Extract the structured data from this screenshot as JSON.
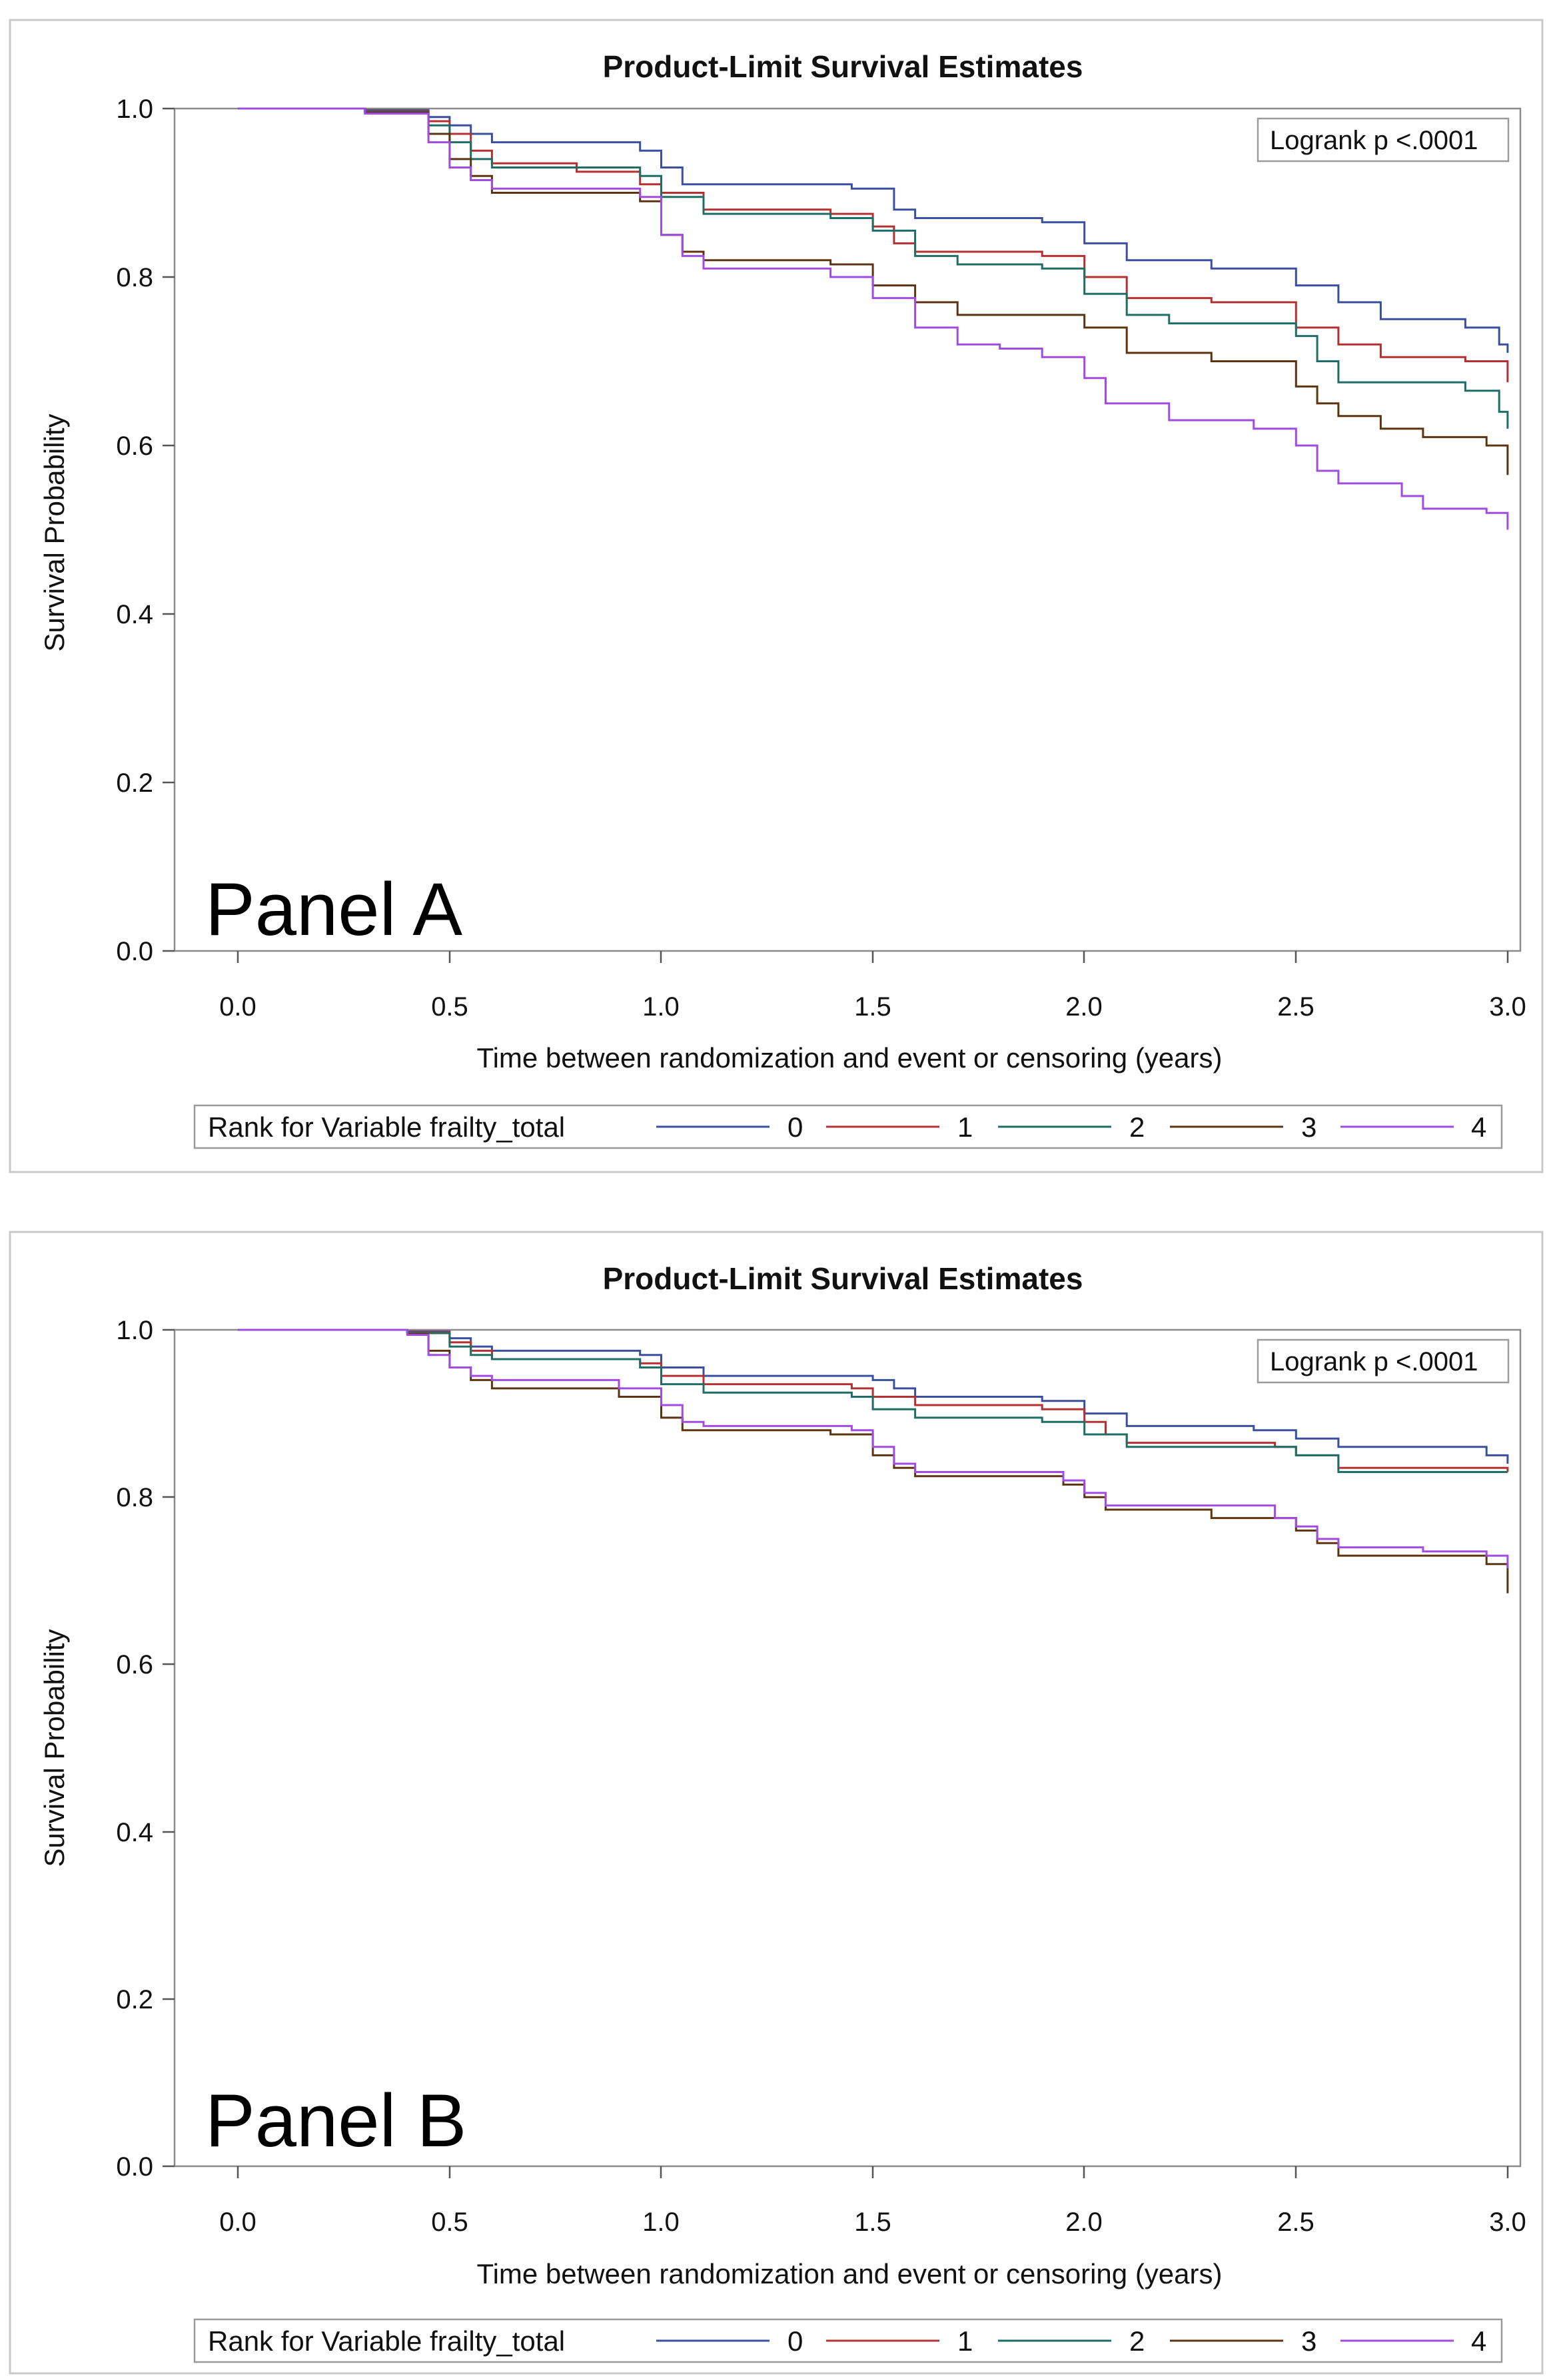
{
  "colors": {
    "series": [
      "#3a4fa0",
      "#b53030",
      "#1e6e66",
      "#5c3410",
      "#a14be0"
    ]
  },
  "chart_data": [
    {
      "type": "line",
      "panel_label": "Panel A",
      "title": "Product-Limit Survival Estimates",
      "xlabel": "Time between randomization and event or censoring (years)",
      "ylabel": "Survival Probability",
      "xlim": [
        -0.15,
        3.03
      ],
      "ylim": [
        0,
        1.0
      ],
      "xticks": [
        "0.0",
        "0.5",
        "1.0",
        "1.5",
        "2.0",
        "2.5",
        "3.0"
      ],
      "yticks": [
        "0.0",
        "0.2",
        "0.4",
        "0.6",
        "0.8",
        "1.0"
      ],
      "annotation": "Logrank p <.0001",
      "legend_title": "Rank for Variable frailty_total",
      "series": [
        {
          "name": "0",
          "points": [
            [
              0,
              1.0
            ],
            [
              0.3,
              0.998
            ],
            [
              0.45,
              0.99
            ],
            [
              0.5,
              0.98
            ],
            [
              0.55,
              0.97
            ],
            [
              0.6,
              0.96
            ],
            [
              0.95,
              0.95
            ],
            [
              1.0,
              0.93
            ],
            [
              1.05,
              0.91
            ],
            [
              1.45,
              0.905
            ],
            [
              1.55,
              0.88
            ],
            [
              1.6,
              0.87
            ],
            [
              1.9,
              0.865
            ],
            [
              2.0,
              0.84
            ],
            [
              2.1,
              0.82
            ],
            [
              2.3,
              0.81
            ],
            [
              2.5,
              0.79
            ],
            [
              2.6,
              0.77
            ],
            [
              2.7,
              0.75
            ],
            [
              2.9,
              0.74
            ],
            [
              2.98,
              0.72
            ],
            [
              3.0,
              0.71
            ]
          ]
        },
        {
          "name": "1",
          "points": [
            [
              0,
              1.0
            ],
            [
              0.3,
              0.997
            ],
            [
              0.45,
              0.985
            ],
            [
              0.5,
              0.97
            ],
            [
              0.55,
              0.95
            ],
            [
              0.6,
              0.935
            ],
            [
              0.8,
              0.925
            ],
            [
              0.95,
              0.91
            ],
            [
              1.0,
              0.9
            ],
            [
              1.1,
              0.88
            ],
            [
              1.4,
              0.875
            ],
            [
              1.5,
              0.86
            ],
            [
              1.55,
              0.84
            ],
            [
              1.6,
              0.83
            ],
            [
              1.9,
              0.825
            ],
            [
              2.0,
              0.8
            ],
            [
              2.1,
              0.775
            ],
            [
              2.3,
              0.77
            ],
            [
              2.5,
              0.74
            ],
            [
              2.6,
              0.72
            ],
            [
              2.7,
              0.705
            ],
            [
              2.9,
              0.7
            ],
            [
              3.0,
              0.675
            ]
          ]
        },
        {
          "name": "2",
          "points": [
            [
              0,
              1.0
            ],
            [
              0.3,
              0.996
            ],
            [
              0.45,
              0.98
            ],
            [
              0.5,
              0.96
            ],
            [
              0.55,
              0.94
            ],
            [
              0.6,
              0.93
            ],
            [
              0.95,
              0.92
            ],
            [
              1.0,
              0.895
            ],
            [
              1.1,
              0.875
            ],
            [
              1.4,
              0.87
            ],
            [
              1.5,
              0.855
            ],
            [
              1.6,
              0.825
            ],
            [
              1.7,
              0.815
            ],
            [
              1.9,
              0.81
            ],
            [
              2.0,
              0.78
            ],
            [
              2.1,
              0.755
            ],
            [
              2.2,
              0.745
            ],
            [
              2.5,
              0.73
            ],
            [
              2.55,
              0.7
            ],
            [
              2.6,
              0.675
            ],
            [
              2.9,
              0.665
            ],
            [
              2.98,
              0.64
            ],
            [
              3.0,
              0.62
            ]
          ]
        },
        {
          "name": "3",
          "points": [
            [
              0,
              1.0
            ],
            [
              0.3,
              0.995
            ],
            [
              0.45,
              0.97
            ],
            [
              0.5,
              0.94
            ],
            [
              0.55,
              0.92
            ],
            [
              0.6,
              0.9
            ],
            [
              0.95,
              0.89
            ],
            [
              1.0,
              0.85
            ],
            [
              1.05,
              0.83
            ],
            [
              1.1,
              0.82
            ],
            [
              1.4,
              0.815
            ],
            [
              1.5,
              0.79
            ],
            [
              1.6,
              0.77
            ],
            [
              1.7,
              0.755
            ],
            [
              2.0,
              0.74
            ],
            [
              2.1,
              0.71
            ],
            [
              2.3,
              0.7
            ],
            [
              2.5,
              0.67
            ],
            [
              2.55,
              0.65
            ],
            [
              2.6,
              0.635
            ],
            [
              2.7,
              0.62
            ],
            [
              2.8,
              0.61
            ],
            [
              2.95,
              0.6
            ],
            [
              3.0,
              0.565
            ]
          ]
        },
        {
          "name": "4",
          "points": [
            [
              0,
              1.0
            ],
            [
              0.3,
              0.994
            ],
            [
              0.45,
              0.96
            ],
            [
              0.5,
              0.93
            ],
            [
              0.55,
              0.915
            ],
            [
              0.6,
              0.905
            ],
            [
              0.95,
              0.895
            ],
            [
              1.0,
              0.85
            ],
            [
              1.05,
              0.825
            ],
            [
              1.1,
              0.81
            ],
            [
              1.4,
              0.8
            ],
            [
              1.5,
              0.775
            ],
            [
              1.6,
              0.74
            ],
            [
              1.7,
              0.72
            ],
            [
              1.8,
              0.715
            ],
            [
              1.9,
              0.705
            ],
            [
              2.0,
              0.68
            ],
            [
              2.05,
              0.65
            ],
            [
              2.2,
              0.63
            ],
            [
              2.4,
              0.62
            ],
            [
              2.5,
              0.6
            ],
            [
              2.55,
              0.57
            ],
            [
              2.6,
              0.555
            ],
            [
              2.75,
              0.54
            ],
            [
              2.8,
              0.525
            ],
            [
              2.95,
              0.52
            ],
            [
              3.0,
              0.5
            ]
          ]
        }
      ]
    },
    {
      "type": "line",
      "panel_label": "Panel B",
      "title": "Product-Limit Survival Estimates",
      "xlabel": "Time between randomization and event or censoring (years)",
      "ylabel": "Survival Probability",
      "xlim": [
        -0.15,
        3.03
      ],
      "ylim": [
        0,
        1.0
      ],
      "xticks": [
        "0.0",
        "0.5",
        "1.0",
        "1.5",
        "2.0",
        "2.5",
        "3.0"
      ],
      "yticks": [
        "0.0",
        "0.2",
        "0.4",
        "0.6",
        "0.8",
        "1.0"
      ],
      "annotation": "Logrank p <.0001",
      "legend_title": "Rank for Variable frailty_total",
      "series": [
        {
          "name": "0",
          "points": [
            [
              0,
              1.0
            ],
            [
              0.4,
              0.998
            ],
            [
              0.5,
              0.99
            ],
            [
              0.55,
              0.98
            ],
            [
              0.6,
              0.975
            ],
            [
              0.95,
              0.97
            ],
            [
              1.0,
              0.955
            ],
            [
              1.1,
              0.945
            ],
            [
              1.5,
              0.94
            ],
            [
              1.55,
              0.93
            ],
            [
              1.6,
              0.92
            ],
            [
              1.9,
              0.915
            ],
            [
              2.0,
              0.9
            ],
            [
              2.1,
              0.885
            ],
            [
              2.4,
              0.88
            ],
            [
              2.5,
              0.87
            ],
            [
              2.6,
              0.86
            ],
            [
              2.95,
              0.85
            ],
            [
              3.0,
              0.84
            ]
          ]
        },
        {
          "name": "1",
          "points": [
            [
              0,
              1.0
            ],
            [
              0.4,
              0.997
            ],
            [
              0.5,
              0.985
            ],
            [
              0.55,
              0.975
            ],
            [
              0.6,
              0.965
            ],
            [
              0.95,
              0.96
            ],
            [
              1.0,
              0.945
            ],
            [
              1.1,
              0.935
            ],
            [
              1.45,
              0.93
            ],
            [
              1.5,
              0.92
            ],
            [
              1.6,
              0.91
            ],
            [
              1.9,
              0.905
            ],
            [
              2.0,
              0.89
            ],
            [
              2.05,
              0.875
            ],
            [
              2.1,
              0.865
            ],
            [
              2.45,
              0.86
            ],
            [
              2.5,
              0.85
            ],
            [
              2.6,
              0.835
            ],
            [
              3.0,
              0.83
            ]
          ]
        },
        {
          "name": "2",
          "points": [
            [
              0,
              1.0
            ],
            [
              0.4,
              0.996
            ],
            [
              0.5,
              0.98
            ],
            [
              0.55,
              0.97
            ],
            [
              0.6,
              0.965
            ],
            [
              0.95,
              0.955
            ],
            [
              1.0,
              0.935
            ],
            [
              1.1,
              0.925
            ],
            [
              1.45,
              0.92
            ],
            [
              1.5,
              0.905
            ],
            [
              1.6,
              0.895
            ],
            [
              1.9,
              0.89
            ],
            [
              2.0,
              0.875
            ],
            [
              2.1,
              0.86
            ],
            [
              2.5,
              0.85
            ],
            [
              2.6,
              0.83
            ],
            [
              3.0,
              0.83
            ]
          ]
        },
        {
          "name": "3",
          "points": [
            [
              0,
              1.0
            ],
            [
              0.4,
              0.995
            ],
            [
              0.45,
              0.975
            ],
            [
              0.5,
              0.955
            ],
            [
              0.55,
              0.94
            ],
            [
              0.6,
              0.93
            ],
            [
              0.9,
              0.92
            ],
            [
              1.0,
              0.895
            ],
            [
              1.05,
              0.88
            ],
            [
              1.4,
              0.875
            ],
            [
              1.5,
              0.85
            ],
            [
              1.55,
              0.835
            ],
            [
              1.6,
              0.825
            ],
            [
              1.95,
              0.815
            ],
            [
              2.0,
              0.8
            ],
            [
              2.05,
              0.785
            ],
            [
              2.3,
              0.775
            ],
            [
              2.5,
              0.76
            ],
            [
              2.55,
              0.745
            ],
            [
              2.6,
              0.73
            ],
            [
              2.95,
              0.72
            ],
            [
              3.0,
              0.685
            ]
          ]
        },
        {
          "name": "4",
          "points": [
            [
              0,
              1.0
            ],
            [
              0.4,
              0.994
            ],
            [
              0.45,
              0.97
            ],
            [
              0.5,
              0.955
            ],
            [
              0.55,
              0.945
            ],
            [
              0.6,
              0.94
            ],
            [
              0.9,
              0.93
            ],
            [
              1.0,
              0.91
            ],
            [
              1.05,
              0.89
            ],
            [
              1.1,
              0.885
            ],
            [
              1.45,
              0.88
            ],
            [
              1.5,
              0.86
            ],
            [
              1.55,
              0.84
            ],
            [
              1.6,
              0.83
            ],
            [
              1.95,
              0.82
            ],
            [
              2.0,
              0.805
            ],
            [
              2.05,
              0.79
            ],
            [
              2.45,
              0.775
            ],
            [
              2.5,
              0.765
            ],
            [
              2.55,
              0.75
            ],
            [
              2.6,
              0.74
            ],
            [
              2.8,
              0.735
            ],
            [
              2.95,
              0.73
            ],
            [
              3.0,
              0.715
            ]
          ]
        }
      ]
    }
  ]
}
